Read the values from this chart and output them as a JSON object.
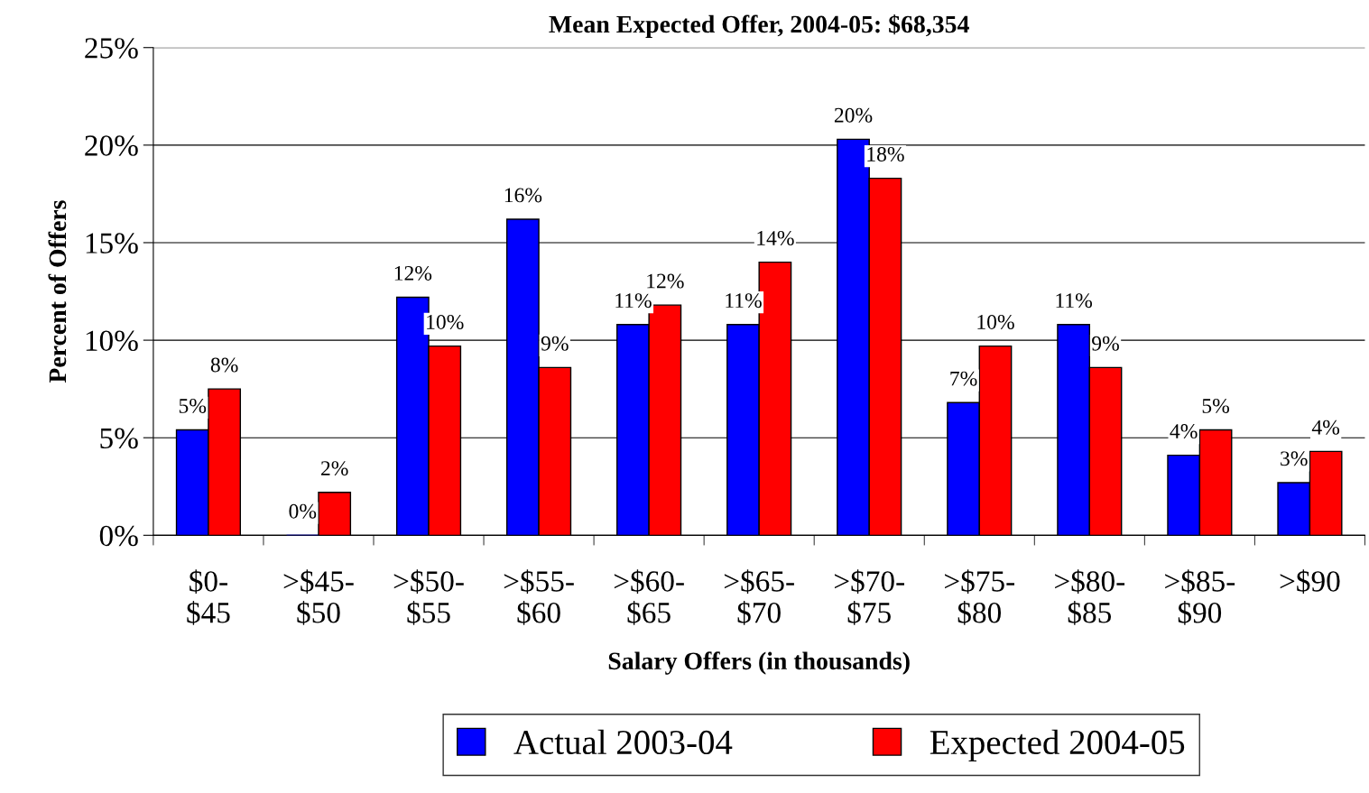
{
  "chart_data": {
    "type": "bar",
    "title": "Mean Expected Offer, 2004-05: $68,354",
    "xlabel": "Salary Offers (in thousands)",
    "ylabel": "Percent of Offers",
    "categories": [
      "$0-\n$45",
      ">$45-\n$50",
      ">$50-\n$55",
      ">$55-\n$60",
      ">$60-\n$65",
      ">$65-\n$70",
      ">$70-\n$75",
      ">$75-\n$80",
      ">$80-\n$85",
      ">$85-\n$90",
      ">$90"
    ],
    "series": [
      {
        "name": "Actual 2003-04",
        "color": "#0000ff",
        "values": [
          5.4,
          0,
          12.2,
          16.2,
          10.8,
          10.8,
          20.3,
          6.8,
          10.8,
          4.1,
          2.7
        ],
        "value_labels": [
          "5%",
          "0%",
          "12%",
          "16%",
          "11%",
          "11%",
          "20%",
          "7%",
          "11%",
          "4%",
          "3%"
        ]
      },
      {
        "name": "Expected 2004-05",
        "color": "#ff0000",
        "values": [
          7.5,
          2.2,
          9.7,
          8.6,
          11.8,
          14.0,
          18.3,
          9.7,
          8.6,
          5.4,
          4.3
        ],
        "value_labels": [
          "8%",
          "2%",
          "10%",
          "9%",
          "12%",
          "14%",
          "18%",
          "10%",
          "9%",
          "5%",
          "4%"
        ]
      }
    ],
    "ylim": [
      0,
      25
    ],
    "yticks": [
      {
        "value": 0,
        "label": "0%"
      },
      {
        "value": 5,
        "label": "5%"
      },
      {
        "value": 10,
        "label": "10%"
      },
      {
        "value": 15,
        "label": "15%"
      },
      {
        "value": 20,
        "label": "20%"
      },
      {
        "value": 25,
        "label": "25%"
      }
    ],
    "grid": "y",
    "legend": "bottom"
  }
}
